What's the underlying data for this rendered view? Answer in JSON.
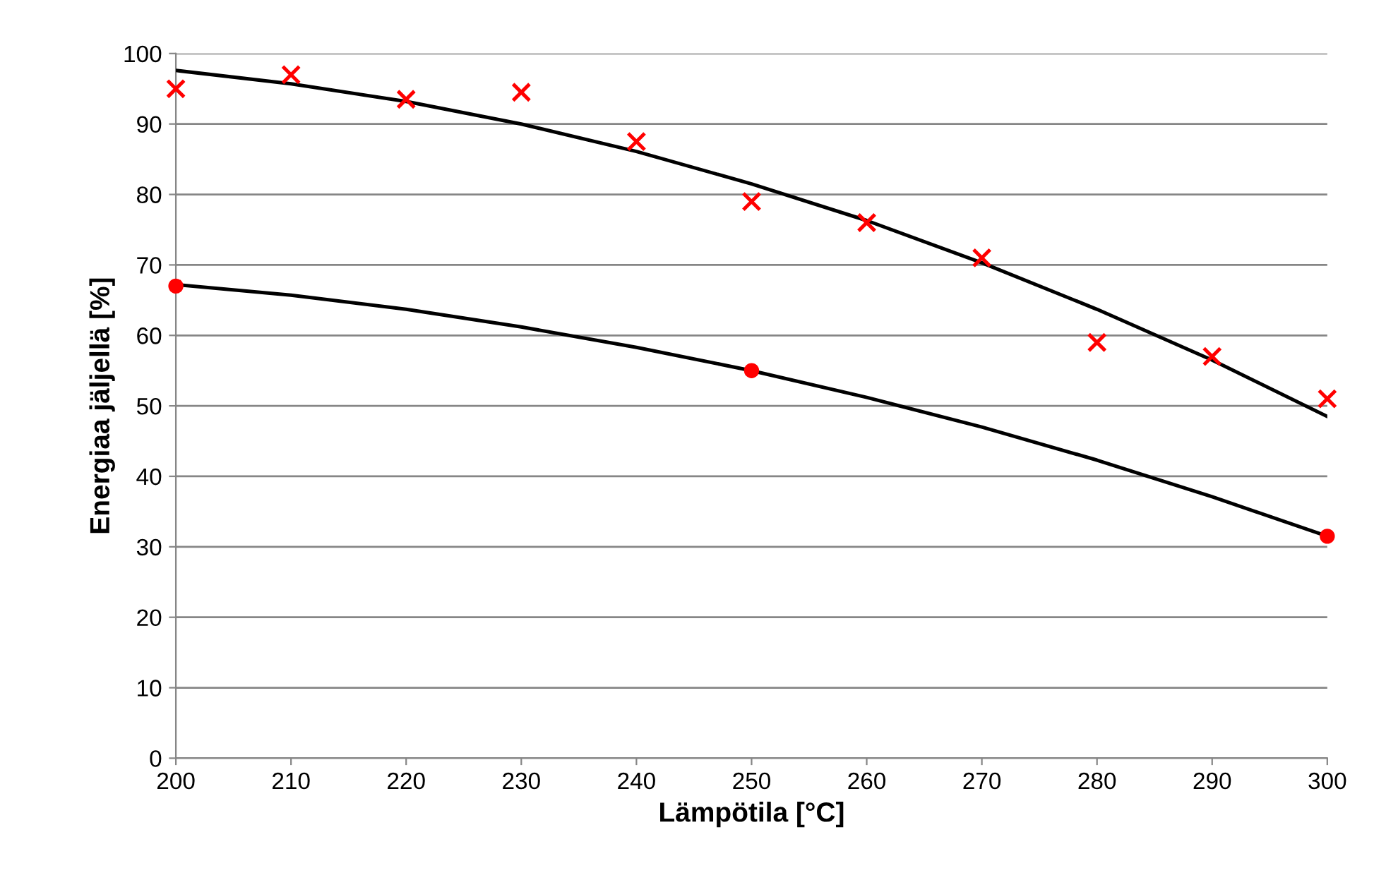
{
  "chart_data": {
    "type": "scatter",
    "xlabel": "Lämpötila [°C]",
    "ylabel": "Energiaa jäljellä [%]",
    "xlim": [
      200,
      300
    ],
    "xticks": [
      200,
      210,
      220,
      230,
      240,
      250,
      260,
      270,
      280,
      290,
      300
    ],
    "ylim": [
      0,
      100
    ],
    "yticks": [
      0,
      10,
      20,
      30,
      40,
      50,
      60,
      70,
      80,
      90,
      100
    ],
    "grid": "y",
    "legend": false,
    "series": [
      {
        "type": "line",
        "color": "#000000",
        "marker": "none",
        "x": [
          200,
          210,
          220,
          230,
          240,
          250,
          260,
          270,
          280,
          290,
          300
        ],
        "values": [
          97.6,
          95.7,
          93.2,
          90.0,
          86.1,
          81.5,
          76.3,
          70.3,
          63.7,
          56.5,
          48.5
        ]
      },
      {
        "type": "line",
        "color": "#000000",
        "marker": "none",
        "x": [
          200,
          210,
          220,
          230,
          240,
          250,
          260,
          270,
          280,
          290,
          300
        ],
        "values": [
          67.2,
          65.7,
          63.7,
          61.2,
          58.3,
          55.0,
          51.2,
          47.0,
          42.3,
          37.1,
          31.5
        ]
      },
      {
        "color": "#ff0000",
        "marker": "cross",
        "x": [
          200,
          210,
          220,
          230,
          240,
          250,
          260,
          270,
          280,
          290,
          300
        ],
        "values": [
          95,
          97,
          93.5,
          94.5,
          87.5,
          79,
          76,
          71,
          59,
          57,
          51
        ]
      },
      {
        "color": "#ff0000",
        "marker": "circle",
        "x": [
          200,
          250,
          300
        ],
        "values": [
          67,
          55,
          31.5
        ]
      }
    ]
  }
}
